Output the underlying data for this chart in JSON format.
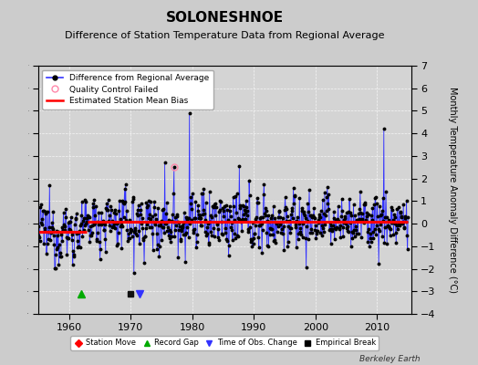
{
  "title": "SOLONESHNOE",
  "subtitle": "Difference of Station Temperature Data from Regional Average",
  "ylabel": "Monthly Temperature Anomaly Difference (°C)",
  "xlabel_bottom": "Berkeley Earth",
  "ylim": [
    -4,
    7
  ],
  "xlim": [
    1955,
    2015.5
  ],
  "yticks": [
    -4,
    -3,
    -2,
    -1,
    0,
    1,
    2,
    3,
    4,
    5,
    6,
    7
  ],
  "xticks": [
    1960,
    1970,
    1980,
    1990,
    2000,
    2010
  ],
  "bias_before": -0.35,
  "bias_after": 0.1,
  "bias_change_year": 1963,
  "years_start": 1955,
  "years_end": 2015,
  "record_gap_x": 1962.0,
  "empirical_break_x": 1970.0,
  "obs_change_x": 1971.5,
  "marker_y": -3.1,
  "bg_color": "#cccccc",
  "plot_bg_color": "#d4d4d4",
  "line_color": "#3333ff",
  "dot_color": "#000000",
  "bias_color": "#ff0000",
  "grid_color": "#ffffff",
  "title_fontsize": 11,
  "subtitle_fontsize": 8,
  "axis_label_fontsize": 7,
  "tick_fontsize": 8
}
